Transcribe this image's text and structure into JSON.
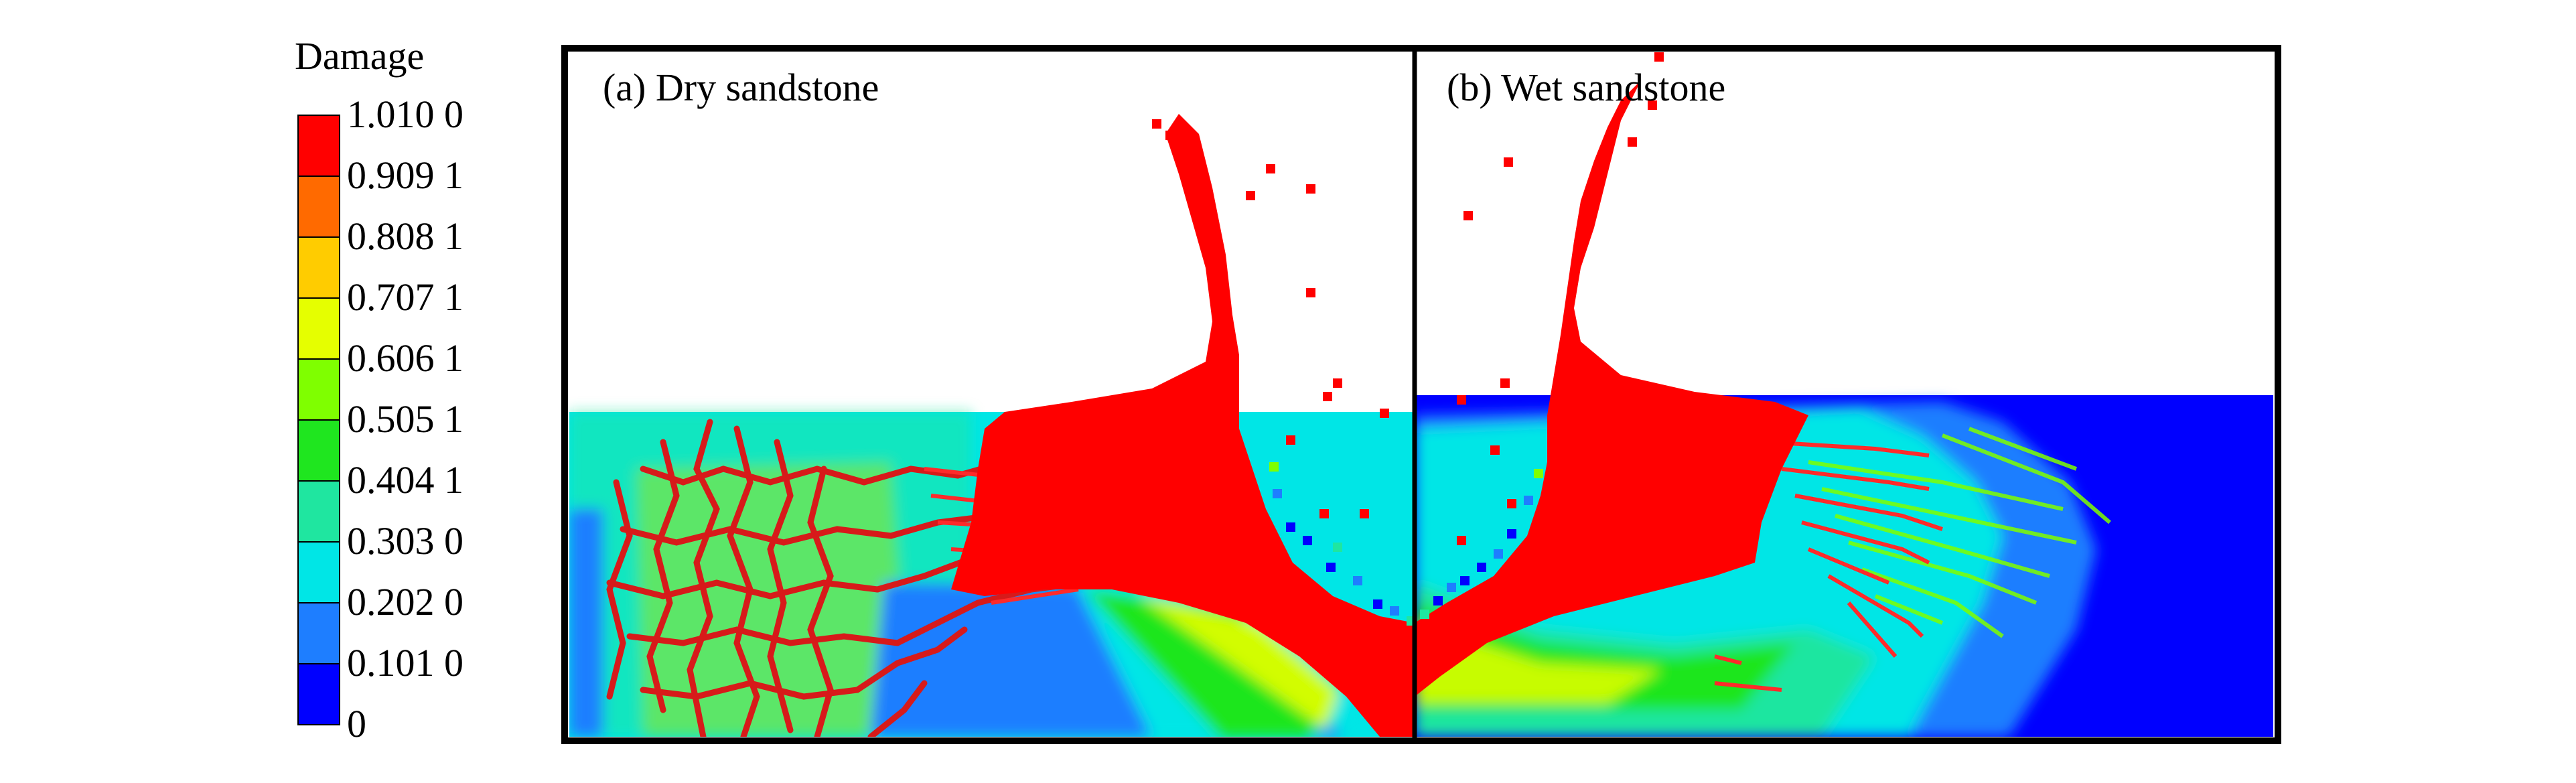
{
  "legend": {
    "title": "Damage",
    "levels": [
      {
        "label": "1.010 0",
        "color": "#ff0000"
      },
      {
        "label": "0.909 1",
        "color": "#ff6a00"
      },
      {
        "label": "0.808 1",
        "color": "#ffcc00"
      },
      {
        "label": "0.707 1",
        "color": "#e5ff00"
      },
      {
        "label": "0.606 1",
        "color": "#7fff00"
      },
      {
        "label": "0.505 1",
        "color": "#1fe61f"
      },
      {
        "label": "0.404 1",
        "color": "#1fe6a0"
      },
      {
        "label": "0.303 0",
        "color": "#00e6e6"
      },
      {
        "label": "0.202 0",
        "color": "#1e7eff"
      },
      {
        "label": "0.101 0",
        "color": "#0000ff"
      },
      {
        "label": "0",
        "color": "#0000ff"
      }
    ]
  },
  "panels": [
    {
      "label": "(a) Dry sandstone"
    },
    {
      "label": "(b) Wet sandstone"
    }
  ],
  "colors": {
    "damaged": "#ff0000",
    "intact": "#0000ff",
    "frame": "#000000"
  }
}
